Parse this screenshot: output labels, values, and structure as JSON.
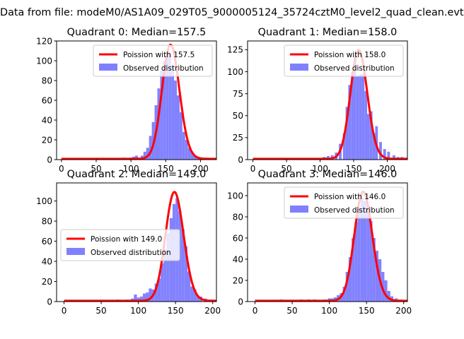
{
  "figure": {
    "suptitle": "Data from file: modeM0/AS1A09_029T05_9000005124_35724cztM0_level2_quad_clean.evt"
  },
  "colors": {
    "poisson_line": "#ff0000",
    "histogram": "#8080ff",
    "axis": "#000000"
  },
  "chart_data": [
    {
      "type": "bar",
      "title": "Quadrant 0: Median=157.5",
      "median": 157.5,
      "xlim": [
        -7,
        223
      ],
      "ylim": [
        0,
        120
      ],
      "xticks": [
        0,
        50,
        100,
        150,
        200
      ],
      "yticks": [
        0,
        20,
        40,
        60,
        80,
        100,
        120
      ],
      "legend_loc": "upper-right",
      "legend_line_label": "Poission with 157.5",
      "legend_bar_label": "Observed distribution",
      "hist_centers": [
        90,
        95,
        100,
        104,
        108,
        112,
        116,
        120,
        124,
        128,
        132,
        136,
        140,
        144,
        148,
        152,
        156,
        160,
        164,
        168,
        172,
        176,
        180,
        184,
        188,
        192,
        196,
        200,
        206
      ],
      "hist_values": [
        2,
        1,
        2,
        3,
        4,
        2,
        4,
        8,
        12,
        24,
        38,
        55,
        72,
        90,
        100,
        110,
        107,
        95,
        80,
        65,
        48,
        28,
        20,
        12,
        8,
        4,
        3,
        2,
        2
      ]
    },
    {
      "type": "bar",
      "title": "Quadrant 1: Median=158.0",
      "median": 158.0,
      "xlim": [
        -8,
        230
      ],
      "ylim": [
        0,
        135
      ],
      "xticks": [
        0,
        50,
        100,
        150,
        200
      ],
      "yticks": [
        0,
        25,
        50,
        75,
        100,
        125
      ],
      "legend_loc": "upper-right",
      "legend_line_label": "Poission with 158.0",
      "legend_bar_label": "Observed distribution",
      "hist_centers": [
        90,
        95,
        100,
        106,
        112,
        118,
        124,
        130,
        136,
        140,
        144,
        148,
        152,
        156,
        160,
        164,
        168,
        172,
        176,
        180,
        184,
        190,
        196,
        202,
        210,
        216,
        222
      ],
      "hist_values": [
        2,
        1,
        2,
        3,
        4,
        5,
        8,
        18,
        30,
        60,
        85,
        100,
        118,
        95,
        97,
        98,
        78,
        52,
        55,
        30,
        38,
        20,
        12,
        9,
        5,
        3,
        3
      ]
    },
    {
      "type": "bar",
      "title": "Quadrant 2: Median=149.0",
      "median": 149.0,
      "xlim": [
        -10,
        205
      ],
      "ylim": [
        0,
        118
      ],
      "xticks": [
        0,
        50,
        100,
        150,
        200
      ],
      "yticks": [
        0,
        20,
        40,
        60,
        80,
        100
      ],
      "legend_loc": "center-left",
      "legend_line_label": "Poission with 149.0",
      "legend_bar_label": "Observed distribution",
      "hist_centers": [
        72,
        80,
        86,
        92,
        96,
        100,
        104,
        108,
        112,
        116,
        120,
        124,
        128,
        132,
        136,
        140,
        144,
        148,
        152,
        156,
        160,
        164,
        168,
        172,
        176,
        180,
        184,
        190
      ],
      "hist_values": [
        2,
        1,
        2,
        3,
        7,
        4,
        5,
        8,
        9,
        13,
        12,
        18,
        23,
        38,
        52,
        68,
        83,
        97,
        103,
        90,
        72,
        55,
        30,
        15,
        12,
        6,
        5,
        3
      ]
    },
    {
      "type": "bar",
      "title": "Quadrant 3: Median=146.0",
      "median": 146.0,
      "xlim": [
        -10,
        205
      ],
      "ylim": [
        0,
        112
      ],
      "xticks": [
        0,
        50,
        100,
        150,
        200
      ],
      "yticks": [
        0,
        20,
        40,
        60,
        80,
        100
      ],
      "legend_loc": "upper-right",
      "legend_line_label": "Poission with 146.0",
      "legend_bar_label": "Observed distribution",
      "hist_centers": [
        35,
        55,
        62,
        72,
        80,
        88,
        94,
        100,
        104,
        108,
        112,
        116,
        120,
        124,
        128,
        132,
        136,
        140,
        144,
        148,
        152,
        156,
        160,
        164,
        168,
        172,
        176,
        180,
        184,
        190
      ],
      "hist_values": [
        2,
        1,
        2,
        2,
        2,
        1,
        2,
        3,
        3,
        4,
        6,
        8,
        14,
        28,
        42,
        60,
        75,
        88,
        98,
        95,
        90,
        76,
        60,
        48,
        40,
        28,
        20,
        10,
        5,
        3
      ]
    }
  ]
}
